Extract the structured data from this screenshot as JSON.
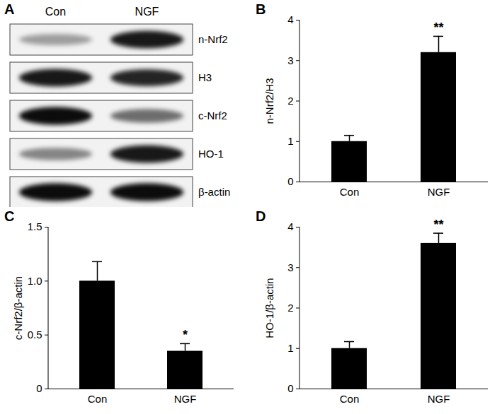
{
  "chart_data": [
    {
      "panel": "A",
      "type": "blot",
      "lanes": [
        "Con",
        "NGF"
      ],
      "rows": [
        {
          "label": "n-Nrf2",
          "intensity": [
            0.35,
            0.9
          ]
        },
        {
          "label": "H3",
          "intensity": [
            0.9,
            0.85
          ]
        },
        {
          "label": "c-Nrf2",
          "intensity": [
            0.95,
            0.55
          ]
        },
        {
          "label": "HO-1",
          "intensity": [
            0.45,
            0.9
          ]
        },
        {
          "label": "β-actin",
          "intensity": [
            0.95,
            0.95
          ]
        }
      ]
    },
    {
      "panel": "B",
      "type": "bar",
      "categories": [
        "Con",
        "NGF"
      ],
      "values": [
        1.0,
        3.2
      ],
      "errors": [
        0.15,
        0.4
      ],
      "significance": [
        null,
        "**"
      ],
      "y_label": "n-Nrf2/H3",
      "ylim": [
        0,
        4
      ],
      "yticks": [
        0,
        1,
        2,
        3,
        4
      ],
      "color": "#000000"
    },
    {
      "panel": "C",
      "type": "bar",
      "categories": [
        "Con",
        "NGF"
      ],
      "values": [
        1.0,
        0.35
      ],
      "errors": [
        0.18,
        0.07
      ],
      "significance": [
        null,
        "*"
      ],
      "y_label": "c-Nrf2/β-actin",
      "ylim": [
        0,
        1.5
      ],
      "yticks": [
        0,
        0.5,
        {
          "value": 1,
          "label": "1.0"
        },
        1.5
      ],
      "color": "#000000"
    },
    {
      "panel": "D",
      "type": "bar",
      "categories": [
        "Con",
        "NGF"
      ],
      "values": [
        1.0,
        3.6
      ],
      "errors": [
        0.17,
        0.25
      ],
      "significance": [
        null,
        "**"
      ],
      "y_label": "HO-1/β-actin",
      "ylim": [
        0,
        4
      ],
      "yticks": [
        0,
        1,
        2,
        3,
        4
      ],
      "color": "#000000"
    }
  ]
}
